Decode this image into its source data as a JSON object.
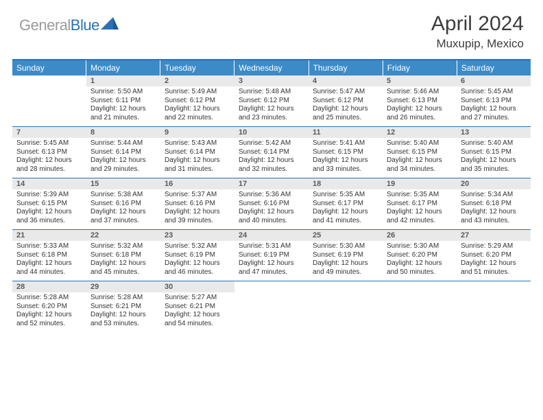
{
  "logo": {
    "gray": "General",
    "blue": "Blue"
  },
  "title": {
    "monthyear": "April 2024",
    "location": "Muxupip, Mexico"
  },
  "colors": {
    "header_bg": "#3b8bc9",
    "border": "#2a72b5",
    "daynum_bg": "#e9e9e9",
    "text": "#333333",
    "logo_gray": "#9b9b9b",
    "logo_blue": "#2a72b5"
  },
  "day_headers": [
    "Sunday",
    "Monday",
    "Tuesday",
    "Wednesday",
    "Thursday",
    "Friday",
    "Saturday"
  ],
  "weeks": [
    [
      null,
      {
        "n": "1",
        "sr": "Sunrise: 5:50 AM",
        "ss": "Sunset: 6:11 PM",
        "dl1": "Daylight: 12 hours",
        "dl2": "and 21 minutes."
      },
      {
        "n": "2",
        "sr": "Sunrise: 5:49 AM",
        "ss": "Sunset: 6:12 PM",
        "dl1": "Daylight: 12 hours",
        "dl2": "and 22 minutes."
      },
      {
        "n": "3",
        "sr": "Sunrise: 5:48 AM",
        "ss": "Sunset: 6:12 PM",
        "dl1": "Daylight: 12 hours",
        "dl2": "and 23 minutes."
      },
      {
        "n": "4",
        "sr": "Sunrise: 5:47 AM",
        "ss": "Sunset: 6:12 PM",
        "dl1": "Daylight: 12 hours",
        "dl2": "and 25 minutes."
      },
      {
        "n": "5",
        "sr": "Sunrise: 5:46 AM",
        "ss": "Sunset: 6:13 PM",
        "dl1": "Daylight: 12 hours",
        "dl2": "and 26 minutes."
      },
      {
        "n": "6",
        "sr": "Sunrise: 5:45 AM",
        "ss": "Sunset: 6:13 PM",
        "dl1": "Daylight: 12 hours",
        "dl2": "and 27 minutes."
      }
    ],
    [
      {
        "n": "7",
        "sr": "Sunrise: 5:45 AM",
        "ss": "Sunset: 6:13 PM",
        "dl1": "Daylight: 12 hours",
        "dl2": "and 28 minutes."
      },
      {
        "n": "8",
        "sr": "Sunrise: 5:44 AM",
        "ss": "Sunset: 6:14 PM",
        "dl1": "Daylight: 12 hours",
        "dl2": "and 29 minutes."
      },
      {
        "n": "9",
        "sr": "Sunrise: 5:43 AM",
        "ss": "Sunset: 6:14 PM",
        "dl1": "Daylight: 12 hours",
        "dl2": "and 31 minutes."
      },
      {
        "n": "10",
        "sr": "Sunrise: 5:42 AM",
        "ss": "Sunset: 6:14 PM",
        "dl1": "Daylight: 12 hours",
        "dl2": "and 32 minutes."
      },
      {
        "n": "11",
        "sr": "Sunrise: 5:41 AM",
        "ss": "Sunset: 6:15 PM",
        "dl1": "Daylight: 12 hours",
        "dl2": "and 33 minutes."
      },
      {
        "n": "12",
        "sr": "Sunrise: 5:40 AM",
        "ss": "Sunset: 6:15 PM",
        "dl1": "Daylight: 12 hours",
        "dl2": "and 34 minutes."
      },
      {
        "n": "13",
        "sr": "Sunrise: 5:40 AM",
        "ss": "Sunset: 6:15 PM",
        "dl1": "Daylight: 12 hours",
        "dl2": "and 35 minutes."
      }
    ],
    [
      {
        "n": "14",
        "sr": "Sunrise: 5:39 AM",
        "ss": "Sunset: 6:15 PM",
        "dl1": "Daylight: 12 hours",
        "dl2": "and 36 minutes."
      },
      {
        "n": "15",
        "sr": "Sunrise: 5:38 AM",
        "ss": "Sunset: 6:16 PM",
        "dl1": "Daylight: 12 hours",
        "dl2": "and 37 minutes."
      },
      {
        "n": "16",
        "sr": "Sunrise: 5:37 AM",
        "ss": "Sunset: 6:16 PM",
        "dl1": "Daylight: 12 hours",
        "dl2": "and 39 minutes."
      },
      {
        "n": "17",
        "sr": "Sunrise: 5:36 AM",
        "ss": "Sunset: 6:16 PM",
        "dl1": "Daylight: 12 hours",
        "dl2": "and 40 minutes."
      },
      {
        "n": "18",
        "sr": "Sunrise: 5:35 AM",
        "ss": "Sunset: 6:17 PM",
        "dl1": "Daylight: 12 hours",
        "dl2": "and 41 minutes."
      },
      {
        "n": "19",
        "sr": "Sunrise: 5:35 AM",
        "ss": "Sunset: 6:17 PM",
        "dl1": "Daylight: 12 hours",
        "dl2": "and 42 minutes."
      },
      {
        "n": "20",
        "sr": "Sunrise: 5:34 AM",
        "ss": "Sunset: 6:18 PM",
        "dl1": "Daylight: 12 hours",
        "dl2": "and 43 minutes."
      }
    ],
    [
      {
        "n": "21",
        "sr": "Sunrise: 5:33 AM",
        "ss": "Sunset: 6:18 PM",
        "dl1": "Daylight: 12 hours",
        "dl2": "and 44 minutes."
      },
      {
        "n": "22",
        "sr": "Sunrise: 5:32 AM",
        "ss": "Sunset: 6:18 PM",
        "dl1": "Daylight: 12 hours",
        "dl2": "and 45 minutes."
      },
      {
        "n": "23",
        "sr": "Sunrise: 5:32 AM",
        "ss": "Sunset: 6:19 PM",
        "dl1": "Daylight: 12 hours",
        "dl2": "and 46 minutes."
      },
      {
        "n": "24",
        "sr": "Sunrise: 5:31 AM",
        "ss": "Sunset: 6:19 PM",
        "dl1": "Daylight: 12 hours",
        "dl2": "and 47 minutes."
      },
      {
        "n": "25",
        "sr": "Sunrise: 5:30 AM",
        "ss": "Sunset: 6:19 PM",
        "dl1": "Daylight: 12 hours",
        "dl2": "and 49 minutes."
      },
      {
        "n": "26",
        "sr": "Sunrise: 5:30 AM",
        "ss": "Sunset: 6:20 PM",
        "dl1": "Daylight: 12 hours",
        "dl2": "and 50 minutes."
      },
      {
        "n": "27",
        "sr": "Sunrise: 5:29 AM",
        "ss": "Sunset: 6:20 PM",
        "dl1": "Daylight: 12 hours",
        "dl2": "and 51 minutes."
      }
    ],
    [
      {
        "n": "28",
        "sr": "Sunrise: 5:28 AM",
        "ss": "Sunset: 6:20 PM",
        "dl1": "Daylight: 12 hours",
        "dl2": "and 52 minutes."
      },
      {
        "n": "29",
        "sr": "Sunrise: 5:28 AM",
        "ss": "Sunset: 6:21 PM",
        "dl1": "Daylight: 12 hours",
        "dl2": "and 53 minutes."
      },
      {
        "n": "30",
        "sr": "Sunrise: 5:27 AM",
        "ss": "Sunset: 6:21 PM",
        "dl1": "Daylight: 12 hours",
        "dl2": "and 54 minutes."
      },
      null,
      null,
      null,
      null
    ]
  ]
}
